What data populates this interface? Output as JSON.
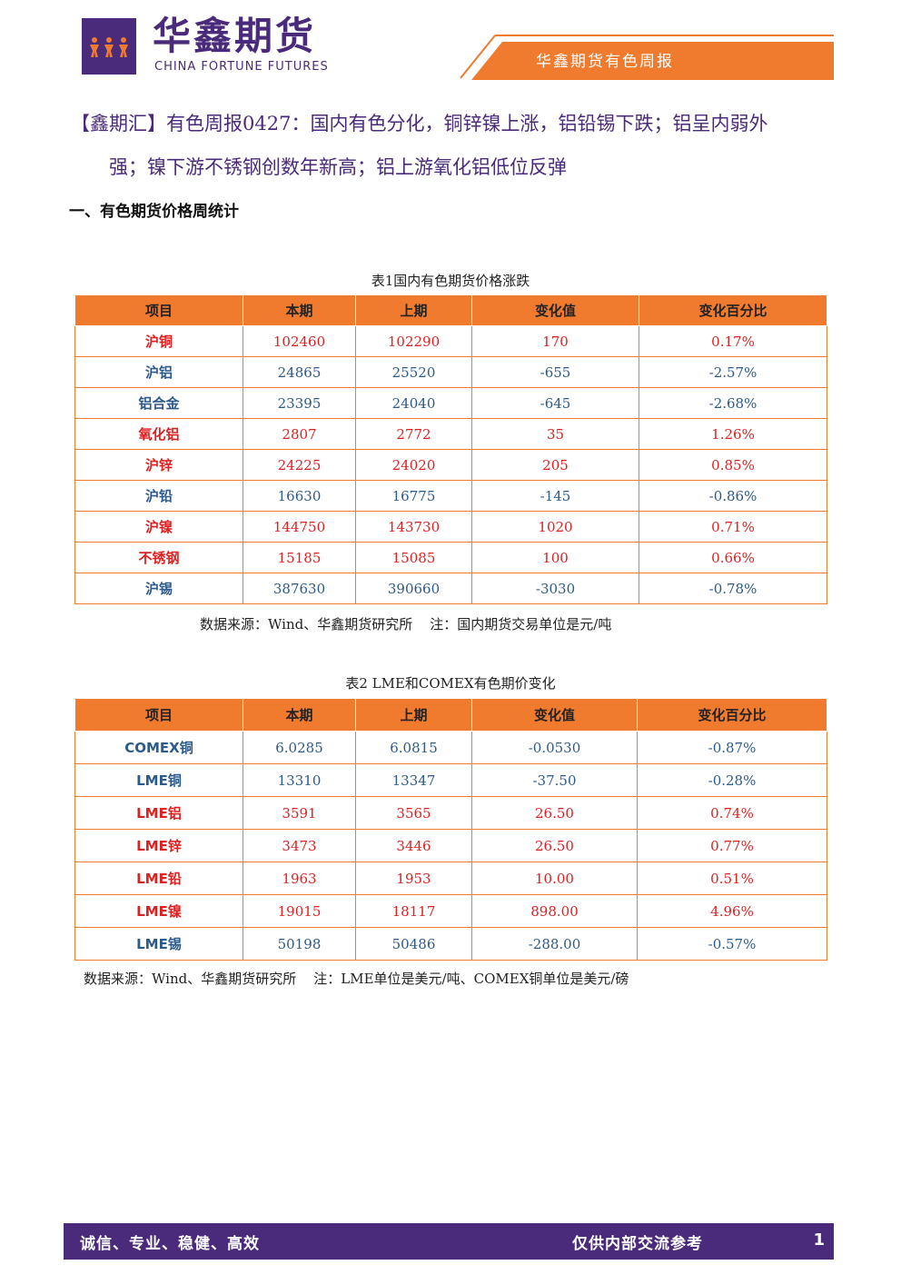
{
  "header": {
    "brand_cn": "华鑫期货",
    "brand_en": "CHINA FORTUNE FUTURES",
    "report_label": "华鑫期货有色周报",
    "accent_color": "#f07b2f",
    "brand_color": "#4a2a7a"
  },
  "headline": {
    "line1": "【鑫期汇】有色周报0427：国内有色分化，铜锌镍上涨，铝铅锡下跌；铝呈内弱外",
    "line2": "强；镍下游不锈钢创数年新高；铝上游氧化铝低位反弹"
  },
  "section_title": "一、有色期货价格周统计",
  "table1": {
    "caption": "表1国内有色期货价格涨跌",
    "headers": [
      "项目",
      "本期",
      "上期",
      "变化值",
      "变化百分比"
    ],
    "rows": [
      {
        "name": "沪铜",
        "cur": "102460",
        "prev": "102290",
        "chg": "170",
        "pct": "0.17%",
        "dir": "up"
      },
      {
        "name": "沪铝",
        "cur": "24865",
        "prev": "25520",
        "chg": "-655",
        "pct": "-2.57%",
        "dir": "dn"
      },
      {
        "name": "铝合金",
        "cur": "23395",
        "prev": "24040",
        "chg": "-645",
        "pct": "-2.68%",
        "dir": "dn"
      },
      {
        "name": "氧化铝",
        "cur": "2807",
        "prev": "2772",
        "chg": "35",
        "pct": "1.26%",
        "dir": "up"
      },
      {
        "name": "沪锌",
        "cur": "24225",
        "prev": "24020",
        "chg": "205",
        "pct": "0.85%",
        "dir": "up"
      },
      {
        "name": "沪铅",
        "cur": "16630",
        "prev": "16775",
        "chg": "-145",
        "pct": "-0.86%",
        "dir": "dn"
      },
      {
        "name": "沪镍",
        "cur": "144750",
        "prev": "143730",
        "chg": "1020",
        "pct": "0.71%",
        "dir": "up"
      },
      {
        "name": "不锈钢",
        "cur": "15185",
        "prev": "15085",
        "chg": "100",
        "pct": "0.66%",
        "dir": "up"
      },
      {
        "name": "沪锡",
        "cur": "387630",
        "prev": "390660",
        "chg": "-3030",
        "pct": "-0.78%",
        "dir": "dn"
      }
    ],
    "note": "数据来源：Wind、华鑫期货研究所    注：国内期货交易单位是元/吨"
  },
  "table2": {
    "caption": "表2 LME和COMEX有色期价变化",
    "headers": [
      "项目",
      "本期",
      "上期",
      "变化值",
      "变化百分比"
    ],
    "rows": [
      {
        "name": "COMEX铜",
        "cur": "6.0285",
        "prev": "6.0815",
        "chg": "-0.0530",
        "pct": "-0.87%",
        "dir": "dn"
      },
      {
        "name": "LME铜",
        "cur": "13310",
        "prev": "13347",
        "chg": "-37.50",
        "pct": "-0.28%",
        "dir": "dn"
      },
      {
        "name": "LME铝",
        "cur": "3591",
        "prev": "3565",
        "chg": "26.50",
        "pct": "0.74%",
        "dir": "up"
      },
      {
        "name": "LME锌",
        "cur": "3473",
        "prev": "3446",
        "chg": "26.50",
        "pct": "0.77%",
        "dir": "up"
      },
      {
        "name": "LME铅",
        "cur": "1963",
        "prev": "1953",
        "chg": "10.00",
        "pct": "0.51%",
        "dir": "up"
      },
      {
        "name": "LME镍",
        "cur": "19015",
        "prev": "18117",
        "chg": "898.00",
        "pct": "4.96%",
        "dir": "up"
      },
      {
        "name": "LME锡",
        "cur": "50198",
        "prev": "50486",
        "chg": "-288.00",
        "pct": "-0.57%",
        "dir": "dn"
      }
    ],
    "note": "数据来源：Wind、华鑫期货研究所    注：LME单位是美元/吨、COMEX铜单位是美元/磅"
  },
  "footer": {
    "slogan": "诚信、专业、稳健、高效",
    "internal": "仅供内部交流参考",
    "page_number": "1"
  }
}
